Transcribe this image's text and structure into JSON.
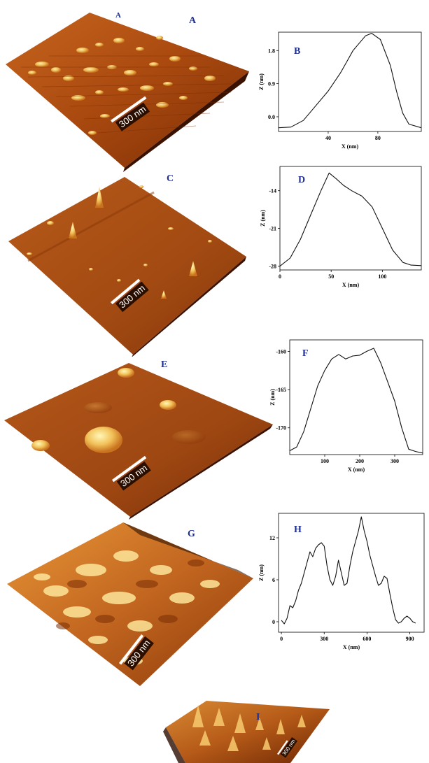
{
  "colors": {
    "afm_dark": "#6b2500",
    "afm_mid": "#b85417",
    "afm_light": "#e8a23a",
    "afm_peak": "#fff3a0",
    "letter": "#1f2f8f"
  },
  "afm_images": [
    {
      "letter": "A",
      "extra_letter": "A",
      "scale_label": "300 nm"
    },
    {
      "letter": "C",
      "scale_label": "300 nm"
    },
    {
      "letter": "E",
      "scale_label": "300 nm"
    },
    {
      "letter": "G",
      "scale_label": "300 nm"
    },
    {
      "letter": "I",
      "scale_label": "300 nm"
    }
  ],
  "chart_data": [
    {
      "type": "line",
      "letter": "B",
      "xlabel": "X (nm)",
      "ylabel": "Z (nm)",
      "xlim": [
        0,
        115
      ],
      "ylim": [
        -0.4,
        2.3
      ],
      "xticks": [
        40,
        80
      ],
      "yticks": [
        0.0,
        0.9,
        1.8
      ],
      "ytick_labels": [
        "0.0",
        "0.9",
        "1.8"
      ],
      "x": [
        0,
        10,
        20,
        30,
        40,
        50,
        55,
        60,
        70,
        75,
        82,
        90,
        95,
        100,
        105,
        115
      ],
      "y": [
        -0.3,
        -0.28,
        -0.1,
        0.3,
        0.7,
        1.2,
        1.5,
        1.8,
        2.2,
        2.27,
        2.1,
        1.4,
        0.7,
        0.1,
        -0.2,
        -0.3
      ]
    },
    {
      "type": "line",
      "letter": "D",
      "xlabel": "X (nm)",
      "ylabel": "Z (nm)",
      "xlim": [
        0,
        138
      ],
      "ylim": [
        -28.7,
        -9.5
      ],
      "xticks": [
        0,
        50,
        100
      ],
      "yticks": [
        -28,
        -21,
        -14
      ],
      "ytick_labels": [
        "-28",
        "-21",
        "-14"
      ],
      "x": [
        0,
        10,
        20,
        30,
        40,
        48,
        55,
        62,
        70,
        80,
        90,
        100,
        110,
        120,
        128,
        138
      ],
      "y": [
        -28,
        -26.5,
        -23,
        -18.5,
        -14,
        -10.7,
        -11.8,
        -13,
        -14,
        -15,
        -17,
        -21,
        -25,
        -27.3,
        -27.8,
        -27.9
      ]
    },
    {
      "type": "line",
      "letter": "F",
      "xlabel": "X (nm)",
      "ylabel": "Z (nm)",
      "xlim": [
        0,
        380
      ],
      "ylim": [
        -173.5,
        -158.5
      ],
      "xticks": [
        100,
        200,
        300
      ],
      "yticks": [
        -170,
        -165,
        -160
      ],
      "ytick_labels": [
        "-170",
        "-165",
        "-160"
      ],
      "x": [
        0,
        20,
        40,
        60,
        80,
        100,
        120,
        140,
        160,
        180,
        200,
        220,
        240,
        260,
        280,
        300,
        320,
        340,
        360,
        380
      ],
      "y": [
        -173,
        -172.5,
        -170.5,
        -167.5,
        -164.5,
        -162.5,
        -161,
        -160.4,
        -161,
        -160.6,
        -160.5,
        -160,
        -159.6,
        -161.5,
        -164,
        -166.5,
        -170,
        -172.8,
        -173.1,
        -173.3
      ]
    },
    {
      "type": "line",
      "letter": "H",
      "xlabel": "X (nm)",
      "ylabel": "Z (nm)",
      "xlim": [
        -20,
        1000
      ],
      "ylim": [
        -1.5,
        15.5
      ],
      "xticks": [
        0,
        300,
        600,
        900
      ],
      "yticks": [
        0,
        6,
        12
      ],
      "ytick_labels": [
        "0",
        "6",
        "12"
      ],
      "x": [
        0,
        20,
        40,
        60,
        80,
        100,
        120,
        140,
        160,
        180,
        200,
        220,
        240,
        260,
        280,
        300,
        320,
        340,
        360,
        380,
        400,
        420,
        440,
        460,
        480,
        500,
        520,
        540,
        560,
        580,
        600,
        620,
        640,
        660,
        680,
        700,
        720,
        740,
        760,
        780,
        800,
        820,
        840,
        860,
        880,
        900,
        920,
        940
      ],
      "y": [
        0.2,
        -0.3,
        0.5,
        2.3,
        2.0,
        3.0,
        4.5,
        5.5,
        7.0,
        8.5,
        10.0,
        9.3,
        10.5,
        11.0,
        11.3,
        10.8,
        8.0,
        6.0,
        5.2,
        6.5,
        8.8,
        7.0,
        5.2,
        5.5,
        8.0,
        10.0,
        11.5,
        13.0,
        15.0,
        13.0,
        11.5,
        9.5,
        8.0,
        6.5,
        5.2,
        5.5,
        6.5,
        6.2,
        4.0,
        2.0,
        0.3,
        -0.2,
        0.0,
        0.5,
        0.8,
        0.5,
        0.0,
        -0.2
      ]
    }
  ]
}
